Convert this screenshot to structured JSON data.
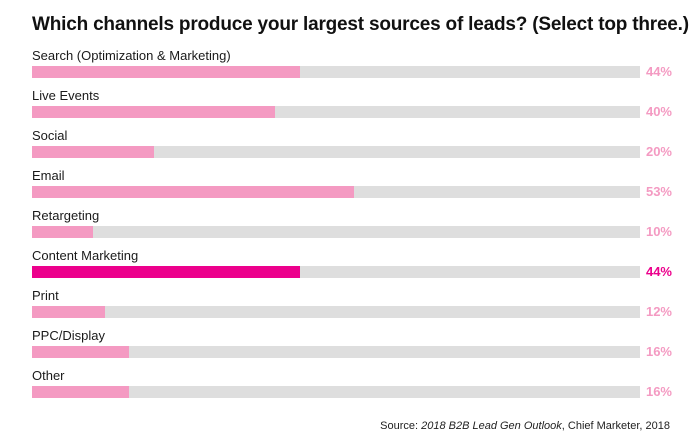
{
  "title": "Which channels produce your largest sources of leads? (Select top three.)",
  "colors": {
    "bar": "#f49ac2",
    "bar_highlight": "#ec008c",
    "track": "#dedede"
  },
  "source": {
    "prefix": "Source: ",
    "publication": "2018 B2B Lead Gen Outlook",
    "suffix": ", Chief Marketer, 2018"
  },
  "chart_data": {
    "type": "bar",
    "orientation": "horizontal",
    "title": "Which channels produce your largest sources of leads? (Select top three.)",
    "categories": [
      "Search (Optimization & Marketing)",
      "Live Events",
      "Social",
      "Email",
      "Retargeting",
      "Content Marketing",
      "Print",
      "PPC/Display",
      "Other"
    ],
    "values": [
      44,
      40,
      20,
      53,
      10,
      44,
      12,
      16,
      16
    ],
    "value_labels": [
      "44%",
      "40%",
      "20%",
      "53%",
      "10%",
      "44%",
      "12%",
      "16%",
      "16%"
    ],
    "highlighted_category": "Content Marketing",
    "xlim": [
      0,
      100
    ],
    "grid": false
  }
}
